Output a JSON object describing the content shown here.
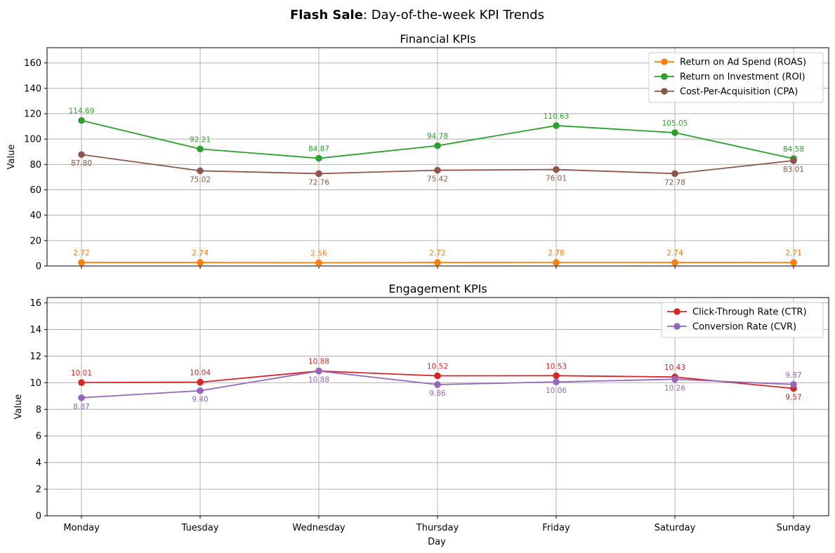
{
  "figure": {
    "title_bold": "Flash Sale",
    "title_rest": ": Day-of-the-week KPI Trends",
    "xlabel": "Day"
  },
  "chart_data": [
    {
      "type": "line",
      "title": "Financial KPIs",
      "xlabel": "",
      "ylabel": "Value",
      "categories": [
        "Monday",
        "Tuesday",
        "Wednesday",
        "Thursday",
        "Friday",
        "Saturday",
        "Sunday"
      ],
      "ylim": [
        0,
        172
      ],
      "yticks": [
        0,
        20,
        40,
        60,
        80,
        100,
        120,
        140,
        160
      ],
      "grid": true,
      "legend": "top-right",
      "series": [
        {
          "name": "Return on Ad Spend (ROAS)",
          "color": "#ff7f0e",
          "label_pos": "above",
          "values": [
            2.72,
            2.74,
            2.56,
            2.72,
            2.78,
            2.74,
            2.71
          ],
          "labels": [
            "2.72",
            "2.74",
            "2.56",
            "2.72",
            "2.78",
            "2.74",
            "2.71"
          ]
        },
        {
          "name": "Return on Investment (ROI)",
          "color": "#2ca02c",
          "label_pos": "above",
          "values": [
            114.69,
            92.21,
            84.87,
            94.78,
            110.63,
            105.05,
            84.58
          ],
          "labels": [
            "114.69",
            "92.21",
            "84.87",
            "94.78",
            "110.63",
            "105.05",
            "84.58"
          ]
        },
        {
          "name": "Cost-Per-Acquisition (CPA)",
          "color": "#8c564b",
          "label_pos": "below",
          "values": [
            87.8,
            75.02,
            72.76,
            75.42,
            76.01,
            72.78,
            83.01
          ],
          "labels": [
            "87.80",
            "75.02",
            "72.76",
            "75.42",
            "76.01",
            "72.78",
            "83.01"
          ]
        }
      ]
    },
    {
      "type": "line",
      "title": "Engagement KPIs",
      "xlabel": "Day",
      "ylabel": "Value",
      "categories": [
        "Monday",
        "Tuesday",
        "Wednesday",
        "Thursday",
        "Friday",
        "Saturday",
        "Sunday"
      ],
      "ylim": [
        0,
        16.4
      ],
      "yticks": [
        0,
        2,
        4,
        6,
        8,
        10,
        12,
        14,
        16
      ],
      "grid": true,
      "legend": "top-right",
      "series": [
        {
          "name": "Click-Through Rate (CTR)",
          "color": "#d62728",
          "label_pos": "above_last_below",
          "values": [
            10.01,
            10.04,
            10.88,
            10.52,
            10.53,
            10.43,
            9.57
          ],
          "labels": [
            "10.01",
            "10.04",
            "10.88",
            "10.52",
            "10.53",
            "10.43",
            "9.57"
          ]
        },
        {
          "name": "Conversion Rate (CVR)",
          "color": "#9467bd",
          "label_pos": "below_last_above",
          "values": [
            8.87,
            9.4,
            10.88,
            9.86,
            10.06,
            10.26,
            9.87
          ],
          "labels": [
            "8.87",
            "9.40",
            "10.88",
            "9.86",
            "10.06",
            "10.26",
            "9.87"
          ]
        }
      ]
    }
  ]
}
